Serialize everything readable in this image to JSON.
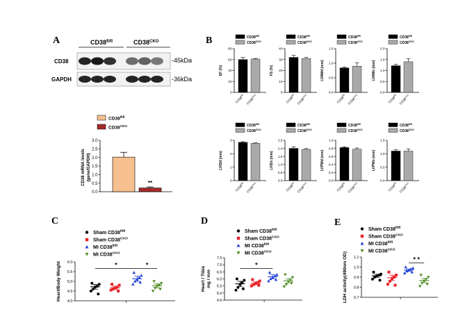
{
  "panels": {
    "A": "A",
    "B": "B",
    "C": "C",
    "D": "D",
    "E": "E"
  },
  "western": {
    "col_fl": "CD38",
    "col_fl_sup": "fl/fl",
    "col_cko": "CD38",
    "col_cko_sup": "CKO",
    "row1": "CD38",
    "row2": "GAPDH",
    "size1": "-45kDa",
    "size2": "-36kDa"
  },
  "chart_data": [
    {
      "id": "A-mrna",
      "type": "bar",
      "ylabel_l1": "CD38 mRNA levels",
      "ylabel_l2": "(gene/GAPDH)",
      "ylim": [
        0,
        3.0
      ],
      "yticks": [
        "0.0",
        "0.5",
        "1.0",
        "1.5",
        "2.0",
        "2.5",
        "3.0"
      ],
      "legend": [
        {
          "name": "CD38",
          "sup": "fl/fl",
          "color": "#f5c08e"
        },
        {
          "name": "CD38",
          "sup": "CKO",
          "color": "#a52a2a"
        }
      ],
      "values": [
        2.02,
        0.22
      ],
      "errors": [
        0.28,
        0.06
      ],
      "colors": [
        "#f5c08e",
        "#a52a2a"
      ],
      "annotation": "**"
    },
    {
      "id": "EF",
      "type": "bar",
      "ylabel": "EF (%)",
      "ylim": [
        0,
        80
      ],
      "yticks": [
        "0",
        "20",
        "40",
        "60",
        "80"
      ],
      "values": [
        60,
        61
      ],
      "errors": [
        4,
        1
      ]
    },
    {
      "id": "FS",
      "type": "bar",
      "ylabel": "FS (%)",
      "ylim": [
        0,
        40
      ],
      "yticks": [
        "0",
        "10",
        "20",
        "30",
        "40"
      ],
      "values": [
        32,
        31
      ],
      "errors": [
        2,
        1
      ]
    },
    {
      "id": "LVAWd",
      "type": "bar",
      "ylabel": "LVAWd (mm)",
      "ylim": [
        0,
        1.5
      ],
      "yticks": [
        "0.0",
        "0.5",
        "1.0",
        "1.5"
      ],
      "values": [
        0.84,
        0.9
      ],
      "errors": [
        0.03,
        0.12
      ]
    },
    {
      "id": "LVAWs",
      "type": "bar",
      "ylabel": "LVAWs (mm)",
      "ylim": [
        0,
        2.0
      ],
      "yticks": [
        "0.0",
        "0.5",
        "1.0",
        "1.5",
        "2.0"
      ],
      "values": [
        1.22,
        1.4
      ],
      "errors": [
        0.06,
        0.15
      ]
    },
    {
      "id": "LVIDd",
      "type": "bar",
      "ylabel": "LVIDd (mm)",
      "ylim": [
        0,
        3
      ],
      "yticks": [
        "0",
        "1",
        "2",
        "3"
      ],
      "values": [
        2.85,
        2.78
      ],
      "errors": [
        0.05,
        0.03
      ]
    },
    {
      "id": "LVIDs",
      "type": "bar",
      "ylabel": "LVIDs (mm)",
      "ylim": [
        0,
        2.5
      ],
      "yticks": [
        "0.0",
        "0.5",
        "1.0",
        "1.5",
        "2.0",
        "2.5"
      ],
      "values": [
        2.0,
        1.94
      ],
      "errors": [
        0.1,
        0.05
      ]
    },
    {
      "id": "LVPWd",
      "type": "bar",
      "ylabel": "LVPWd (mm)",
      "ylim": [
        0,
        1.0
      ],
      "yticks": [
        "0.0",
        "0.2",
        "0.4",
        "0.6",
        "0.8",
        "1.0"
      ],
      "values": [
        0.82,
        0.78
      ],
      "errors": [
        0.02,
        0.03
      ]
    },
    {
      "id": "LVPWs",
      "type": "bar",
      "ylabel": "LVPWs (mm)",
      "ylim": [
        0,
        1.5
      ],
      "yticks": [
        "0.0",
        "0.5",
        "1.0",
        "1.5"
      ],
      "values": [
        1.1,
        1.1
      ],
      "errors": [
        0.05,
        0.08
      ]
    },
    {
      "id": "C",
      "type": "scatter",
      "ylabel": "Heart/Body Weight",
      "ylim": [
        4.0,
        6.0
      ],
      "yticks": [
        "4.0",
        "4.5",
        "5.0",
        "5.5",
        "6.0"
      ],
      "groups": [
        {
          "mean": 4.72,
          "sem": 0.12,
          "points": [
            4.5,
            4.6,
            4.7,
            4.75,
            4.85,
            4.9,
            4.35
          ]
        },
        {
          "mean": 4.67,
          "sem": 0.08,
          "points": [
            4.55,
            4.6,
            4.65,
            4.7,
            4.8,
            4.85,
            4.5
          ]
        },
        {
          "mean": 5.13,
          "sem": 0.13,
          "points": [
            4.85,
            5.0,
            5.1,
            5.2,
            5.3,
            5.45,
            4.95
          ]
        },
        {
          "mean": 4.77,
          "sem": 0.1,
          "points": [
            4.5,
            4.65,
            4.75,
            4.8,
            4.9,
            5.0,
            4.6
          ]
        }
      ],
      "sig": [
        {
          "from": 0,
          "to": 2,
          "label": "*"
        },
        {
          "from": 2,
          "to": 3,
          "label": "*"
        }
      ]
    },
    {
      "id": "D",
      "type": "scatter",
      "ylabel_l1": "Heart / Tibia",
      "ylabel_l2": "mg / mm",
      "ylim": [
        4.5,
        7.5
      ],
      "yticks": [
        "4.5",
        "5.0",
        "5.5",
        "6.0",
        "6.5",
        "7.0",
        "7.5"
      ],
      "groups": [
        {
          "mean": 5.65,
          "sem": 0.18,
          "points": [
            5.2,
            5.4,
            5.6,
            5.75,
            5.9,
            6.0,
            5.3
          ]
        },
        {
          "mean": 5.68,
          "sem": 0.1,
          "points": [
            5.5,
            5.6,
            5.7,
            5.75,
            5.85,
            5.95,
            5.55
          ]
        },
        {
          "mean": 6.15,
          "sem": 0.14,
          "points": [
            5.85,
            6.0,
            6.1,
            6.2,
            6.3,
            6.45,
            5.95
          ]
        },
        {
          "mean": 5.86,
          "sem": 0.14,
          "points": [
            5.45,
            5.6,
            5.8,
            5.95,
            6.1,
            6.3,
            5.7
          ]
        }
      ],
      "sig": [
        {
          "from": 0,
          "to": 2,
          "label": "*"
        }
      ]
    },
    {
      "id": "E",
      "type": "scatter",
      "ylabel": "LDH activity(490nm OD)",
      "ylim": [
        0.7,
        1.1
      ],
      "yticks": [
        "0.7",
        "0.8",
        "0.9",
        "1.0",
        "1.1"
      ],
      "groups": [
        {
          "mean": 0.913,
          "sem": 0.015,
          "points": [
            0.88,
            0.9,
            0.91,
            0.92,
            0.93,
            0.95,
            0.87
          ]
        },
        {
          "mean": 0.895,
          "sem": 0.025,
          "points": [
            0.83,
            0.86,
            0.88,
            0.9,
            0.92,
            0.95,
            0.82
          ]
        },
        {
          "mean": 0.97,
          "sem": 0.012,
          "points": [
            0.94,
            0.96,
            0.97,
            0.98,
            0.99,
            1.0,
            0.95
          ]
        },
        {
          "mean": 0.866,
          "sem": 0.02,
          "points": [
            0.81,
            0.84,
            0.86,
            0.88,
            0.9,
            0.92,
            0.83
          ]
        }
      ],
      "sig": [
        {
          "from": 2,
          "to": 3,
          "label": "* *"
        }
      ]
    }
  ],
  "legend_b": [
    {
      "name": "CD38",
      "sup": "fl/fl",
      "color": "#000000"
    },
    {
      "name": "CD38",
      "sup": "CKO",
      "color": "#a9a9a9"
    }
  ],
  "xcats_b": [
    {
      "name": "CD38",
      "sup": "fl/fl"
    },
    {
      "name": "CD38",
      "sup": "CKO"
    }
  ],
  "legend_cde": [
    {
      "name": "Sham CD38",
      "sup": "fl/fl",
      "color": "#000000",
      "marker": "circle"
    },
    {
      "name": "Sham CD38",
      "sup": "CKO",
      "color": "#e8252a",
      "marker": "square"
    },
    {
      "name": "MI CD38",
      "sup": "fl/fl",
      "color": "#1f3fd8",
      "marker": "triangle"
    },
    {
      "name": "MI CD38",
      "sup": "CKO",
      "color": "#4e8a1e",
      "marker": "invtriangle"
    }
  ]
}
